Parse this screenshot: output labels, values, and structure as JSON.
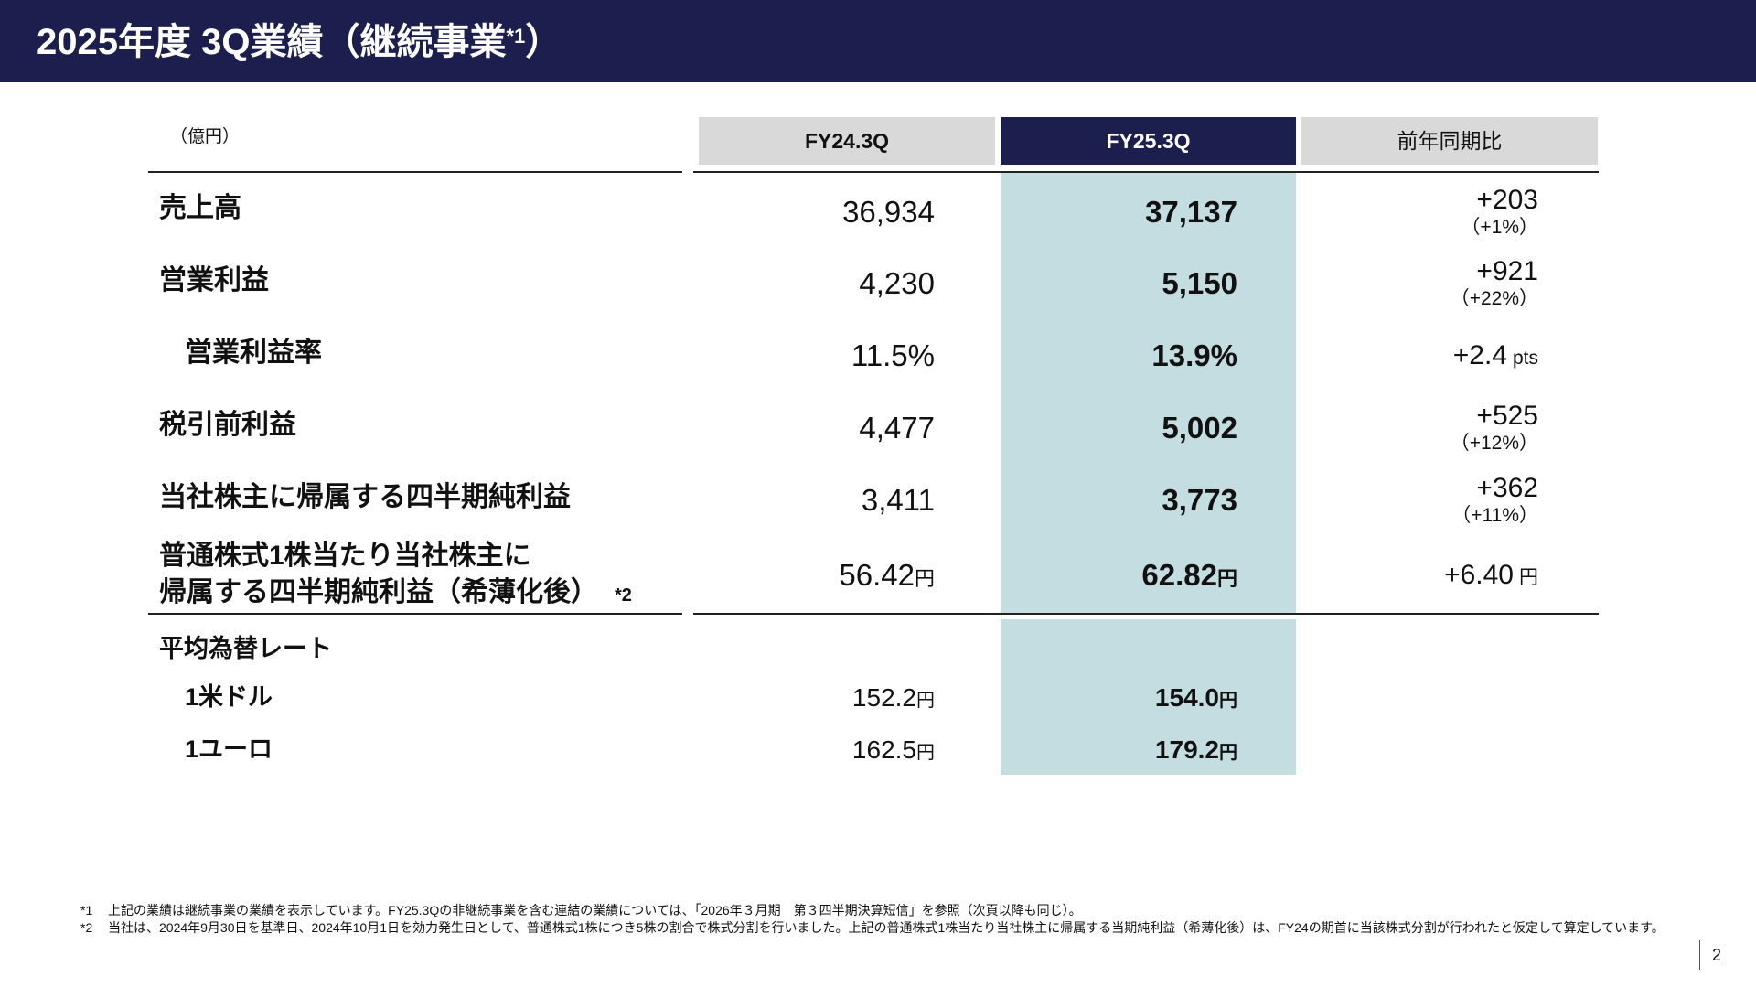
{
  "header": {
    "title": "2025年度 3Q業績（継続事業",
    "title_sup": "*1",
    "title_close": "）"
  },
  "table": {
    "unit": "（億円）",
    "columns": [
      "FY24.3Q",
      "FY25.3Q",
      "前年同期比"
    ],
    "rows": [
      {
        "label": "売上高",
        "fy24": "36,934",
        "fy25": "37,137",
        "diff": "+203",
        "pct": "（+1%）"
      },
      {
        "label": "営業利益",
        "fy24": "4,230",
        "fy25": "5,150",
        "diff": "+921",
        "pct": "（+22%）"
      },
      {
        "label": "営業利益率",
        "fy24": "11.5%",
        "fy25": "13.9%",
        "diff": "+2.4",
        "diff_unit": "pts"
      },
      {
        "label": "税引前利益",
        "fy24": "4,477",
        "fy25": "5,002",
        "diff": "+525",
        "pct": "（+12%）"
      },
      {
        "label": "当社株主に帰属する四半期純利益",
        "fy24": "3,411",
        "fy25": "3,773",
        "diff": "+362",
        "pct": "（+11%）"
      },
      {
        "label_line1": "普通株式1株当たり当社株主に",
        "label_line2": "帰属する四半期純利益（希薄化後）",
        "label_note": "*2",
        "fy24": "56.42",
        "fy25": "62.82",
        "diff": "+6.40",
        "unit": "円"
      }
    ],
    "fx": {
      "title": "平均為替レート",
      "items": [
        {
          "label": "1米ドル",
          "fy24": "152.2",
          "fy25": "154.0",
          "unit": "円"
        },
        {
          "label": "1ユーロ",
          "fy24": "162.5",
          "fy25": "179.2",
          "unit": "円"
        }
      ]
    }
  },
  "footnotes": [
    {
      "mark": "*1",
      "text": "上記の業績は継続事業の業績を表示しています。FY25.3Qの非継続事業を含む連結の業績については、「2026年３月期　第３四半期決算短信」を参照（次頁以降も同じ）。"
    },
    {
      "mark": "*2",
      "text": "当社は、2024年9月30日を基準日、2024年10月1日を効力発生日として、普通株式1株につき5株の割合で株式分割を行いました。上記の普通株式1株当たり当社株主に帰属する当期純利益（希薄化後）は、FY24の期首に当該株式分割が行われたと仮定して算定しています。"
    }
  ],
  "page_number": "2"
}
